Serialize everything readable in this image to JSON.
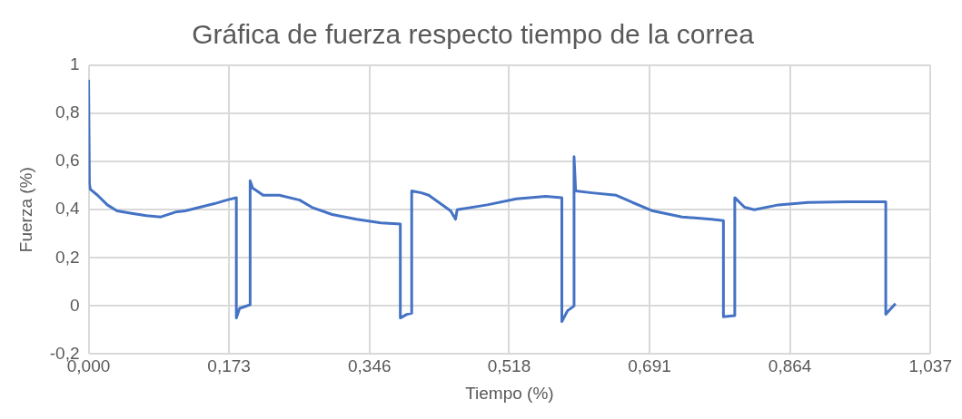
{
  "chart_data": {
    "type": "line",
    "title": "Gráfica de fuerza respecto tiempo de la correa",
    "xlabel": "Tiempo (%)",
    "ylabel": "Fuerza (%)",
    "x": [
      0,
      0.001,
      0.002,
      0.011,
      0.023,
      0.035,
      0.053,
      0.071,
      0.089,
      0.107,
      0.119,
      0.137,
      0.155,
      0.17,
      0.182,
      0.182,
      0.186,
      0.199,
      0.199,
      0.202,
      0.215,
      0.235,
      0.26,
      0.275,
      0.3,
      0.33,
      0.36,
      0.384,
      0.384,
      0.392,
      0.398,
      0.398,
      0.41,
      0.419,
      0.446,
      0.452,
      0.454,
      0.491,
      0.527,
      0.563,
      0.583,
      0.583,
      0.59,
      0.598,
      0.598,
      0.6,
      0.62,
      0.65,
      0.67,
      0.695,
      0.731,
      0.767,
      0.782,
      0.782,
      0.796,
      0.796,
      0.808,
      0.82,
      0.85,
      0.886,
      0.934,
      0.982,
      0.982,
      0.994
    ],
    "series": [
      {
        "color": "#4472c4",
        "values": [
          0.94,
          0.51,
          0.485,
          0.46,
          0.42,
          0.395,
          0.385,
          0.375,
          0.37,
          0.39,
          0.395,
          0.41,
          0.425,
          0.44,
          0.45,
          -0.05,
          -0.01,
          0.005,
          0.52,
          0.49,
          0.46,
          0.46,
          0.44,
          0.41,
          0.38,
          0.36,
          0.345,
          0.34,
          -0.05,
          -0.035,
          -0.03,
          0.478,
          0.47,
          0.46,
          0.395,
          0.36,
          0.4,
          0.42,
          0.445,
          0.455,
          0.45,
          -0.065,
          -0.02,
          0.0,
          0.62,
          0.478,
          0.47,
          0.46,
          0.43,
          0.395,
          0.37,
          0.36,
          0.355,
          -0.045,
          -0.04,
          0.45,
          0.41,
          0.4,
          0.42,
          0.43,
          0.433,
          0.433,
          -0.035,
          0.01
        ]
      }
    ],
    "xlim": [
      0,
      1.037
    ],
    "xticks": [
      {
        "value": 0,
        "label": "0,000"
      },
      {
        "value": 0.173,
        "label": "0,173"
      },
      {
        "value": 0.346,
        "label": "0,346"
      },
      {
        "value": 0.518,
        "label": "0,518"
      },
      {
        "value": 0.691,
        "label": "0,691"
      },
      {
        "value": 0.864,
        "label": "0,864"
      },
      {
        "value": 1.037,
        "label": "1,037"
      }
    ],
    "ylim": [
      -0.2,
      1
    ],
    "yticks": [
      {
        "value": -0.2,
        "label": "-0,2"
      },
      0,
      {
        "value": 0.2,
        "label": "0,2"
      },
      {
        "value": 0.4,
        "label": "0,4"
      },
      {
        "value": 0.6,
        "label": "0,6"
      },
      {
        "value": 0.8,
        "label": "0,8"
      },
      1
    ],
    "grid": true,
    "legend": false,
    "marker": "none",
    "line_style": "solid"
  }
}
